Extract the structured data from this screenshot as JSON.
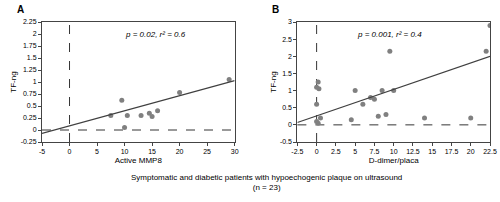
{
  "title": "Symptomatic and diabetic patients with hypoechogenic plaque on ultrasound",
  "subtitle": "(n = 23)",
  "chart_data": [
    {
      "type": "scatter",
      "title": "A",
      "xlabel": "Active MMP8",
      "ylabel": "TF-ng",
      "annotations": [
        "p = 0.02, r² = 0.6"
      ],
      "series": [
        {
          "type": "scatter",
          "marker": "circle",
          "color": "#808080",
          "x": [
            7.5,
            9.5,
            10,
            10.5,
            13,
            14.5,
            15,
            16,
            20,
            29
          ],
          "values": [
            0.3,
            0.62,
            0.05,
            0.3,
            0.3,
            0.35,
            0.28,
            0.4,
            0.78,
            1.05
          ]
        },
        {
          "type": "line",
          "color": "#404040",
          "x": [
            -5,
            30
          ],
          "values": [
            -0.07,
            1.03
          ]
        }
      ],
      "vline": 0,
      "hline": 0,
      "xlim": [
        -5,
        30
      ],
      "ylim": [
        -0.25,
        2.25
      ],
      "xticks": [
        -5,
        0,
        5,
        10,
        15,
        20,
        25,
        30
      ],
      "yticks": [
        -0.25,
        0,
        0.25,
        0.5,
        0.75,
        1,
        1.25,
        1.5,
        1.75,
        2,
        2.25
      ],
      "grid": false
    },
    {
      "type": "scatter",
      "title": "B",
      "xlabel": "D-dimer/placa",
      "ylabel": "TF-ng",
      "annotations": [
        "p = 0.001, r² = 0.4"
      ],
      "series": [
        {
          "type": "scatter",
          "marker": "circle",
          "color": "#808080",
          "x": [
            0,
            0,
            0,
            0.2,
            0.2,
            0.3,
            0.5,
            4.5,
            5,
            6,
            7,
            7.5,
            8,
            8.5,
            9,
            9.5,
            10,
            14,
            20,
            22,
            22.5
          ],
          "values": [
            0.1,
            0.6,
            1.1,
            1.25,
            0.05,
            1.05,
            0.2,
            0.15,
            1.0,
            0.6,
            0.8,
            0.75,
            0.25,
            1.0,
            0.3,
            2.15,
            1.0,
            0.2,
            0.2,
            2.15,
            2.9
          ]
        },
        {
          "type": "line",
          "color": "#404040",
          "x": [
            -2.5,
            22.5
          ],
          "values": [
            0.07,
            2.0
          ]
        }
      ],
      "vline": 0,
      "hline": 0,
      "xlim": [
        -2.5,
        22.5
      ],
      "ylim": [
        -0.5,
        3.0
      ],
      "xticks": [
        -2.5,
        0,
        2.5,
        5,
        7.5,
        10,
        12.5,
        15,
        17.5,
        20,
        22.5
      ],
      "yticks": [
        -0.5,
        0,
        0.5,
        1,
        1.5,
        2,
        2.5,
        3
      ],
      "grid": false
    }
  ]
}
